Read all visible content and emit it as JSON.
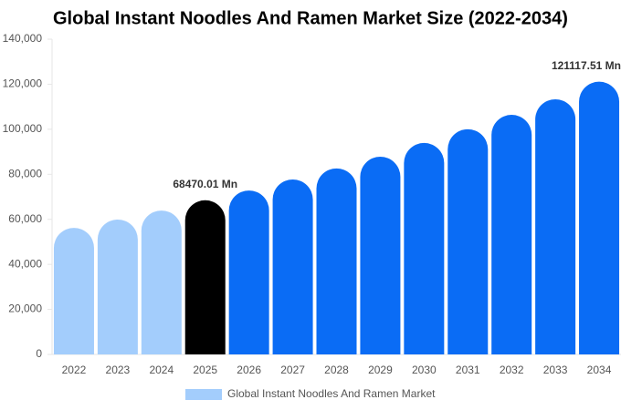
{
  "chart_data": {
    "type": "bar",
    "title": "Global Instant Noodles And Ramen Market Size (2022-2034)",
    "categories": [
      "2022",
      "2023",
      "2024",
      "2025",
      "2026",
      "2027",
      "2028",
      "2029",
      "2030",
      "2031",
      "2032",
      "2033",
      "2034"
    ],
    "series": [
      {
        "name": "Global Instant Noodles And Ramen Market",
        "color": "#a3cdfc",
        "values": [
          56200,
          59900,
          63900,
          68470.01,
          72800,
          77700,
          82600,
          87800,
          93900,
          100000,
          106400,
          113300,
          121117.51
        ],
        "value_labels": [
          null,
          null,
          null,
          "68470.01 Mn",
          null,
          null,
          null,
          null,
          null,
          null,
          null,
          null,
          "121117.51 Mn"
        ],
        "colors": [
          "#a3cdfc",
          "#a3cdfc",
          "#a3cdfc",
          "#000000",
          "#0a6cf5",
          "#0a6cf5",
          "#0a6cf5",
          "#0a6cf5",
          "#0a6cf5",
          "#0a6cf5",
          "#0a6cf5",
          "#0a6cf5",
          "#0a6cf5"
        ]
      }
    ],
    "ylim": [
      0,
      140000
    ],
    "yticks": [
      0,
      {
        "value": 20000,
        "label": "20,000"
      },
      {
        "value": 40000,
        "label": "40,000"
      },
      {
        "value": 60000,
        "label": "60,000"
      },
      {
        "value": 80000,
        "label": "80,000"
      },
      {
        "value": 100000,
        "label": "100,000"
      },
      {
        "value": 120000,
        "label": "120,000"
      },
      {
        "value": 140000,
        "label": "140,000"
      }
    ],
    "grid": false
  }
}
